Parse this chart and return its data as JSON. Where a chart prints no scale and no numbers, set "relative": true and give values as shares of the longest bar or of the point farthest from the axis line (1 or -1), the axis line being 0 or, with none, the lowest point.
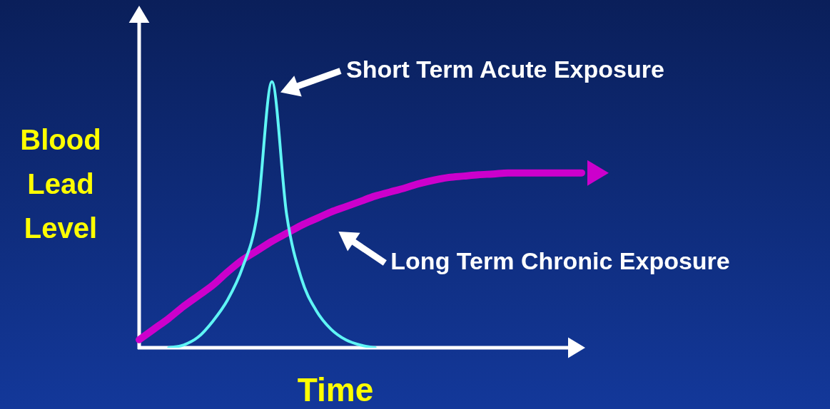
{
  "chart_data": {
    "type": "line",
    "relative": true,
    "xlabel": "Time",
    "ylabel": "Blood Lead Level",
    "legend": false,
    "grid": false,
    "marker": "none",
    "categories": [
      null,
      null,
      null,
      null,
      null,
      null,
      null,
      null,
      null,
      null,
      null,
      null,
      null,
      null,
      null,
      null,
      null,
      null,
      null,
      null,
      null,
      null,
      null,
      null,
      null,
      null,
      null,
      null,
      null,
      null,
      null
    ],
    "series": [
      {
        "name": "Short Term Acute Exposure",
        "color": "#5ff5f5",
        "values": [
          null,
          null,
          0,
          0.01,
          0.04,
          0.1,
          0.18,
          0.3,
          0.5,
          1,
          0.5,
          0.26,
          0.14,
          0.07,
          0.03,
          0.01,
          0,
          null,
          null,
          null,
          null,
          null,
          null,
          null,
          null,
          null,
          null,
          null,
          null,
          null,
          null
        ]
      },
      {
        "name": "Long Term Chronic Exposure",
        "color": "#cc00cc",
        "values": [
          0.03,
          0.07,
          0.11,
          0.155,
          0.195,
          0.235,
          0.285,
          0.33,
          0.365,
          0.4,
          0.43,
          0.46,
          0.485,
          0.51,
          0.53,
          0.55,
          0.57,
          0.585,
          0.6,
          0.617,
          0.63,
          0.64,
          0.645,
          0.65,
          0.653,
          0.657,
          0.657,
          0.657,
          0.657,
          0.657,
          0.657
        ]
      }
    ]
  }
}
